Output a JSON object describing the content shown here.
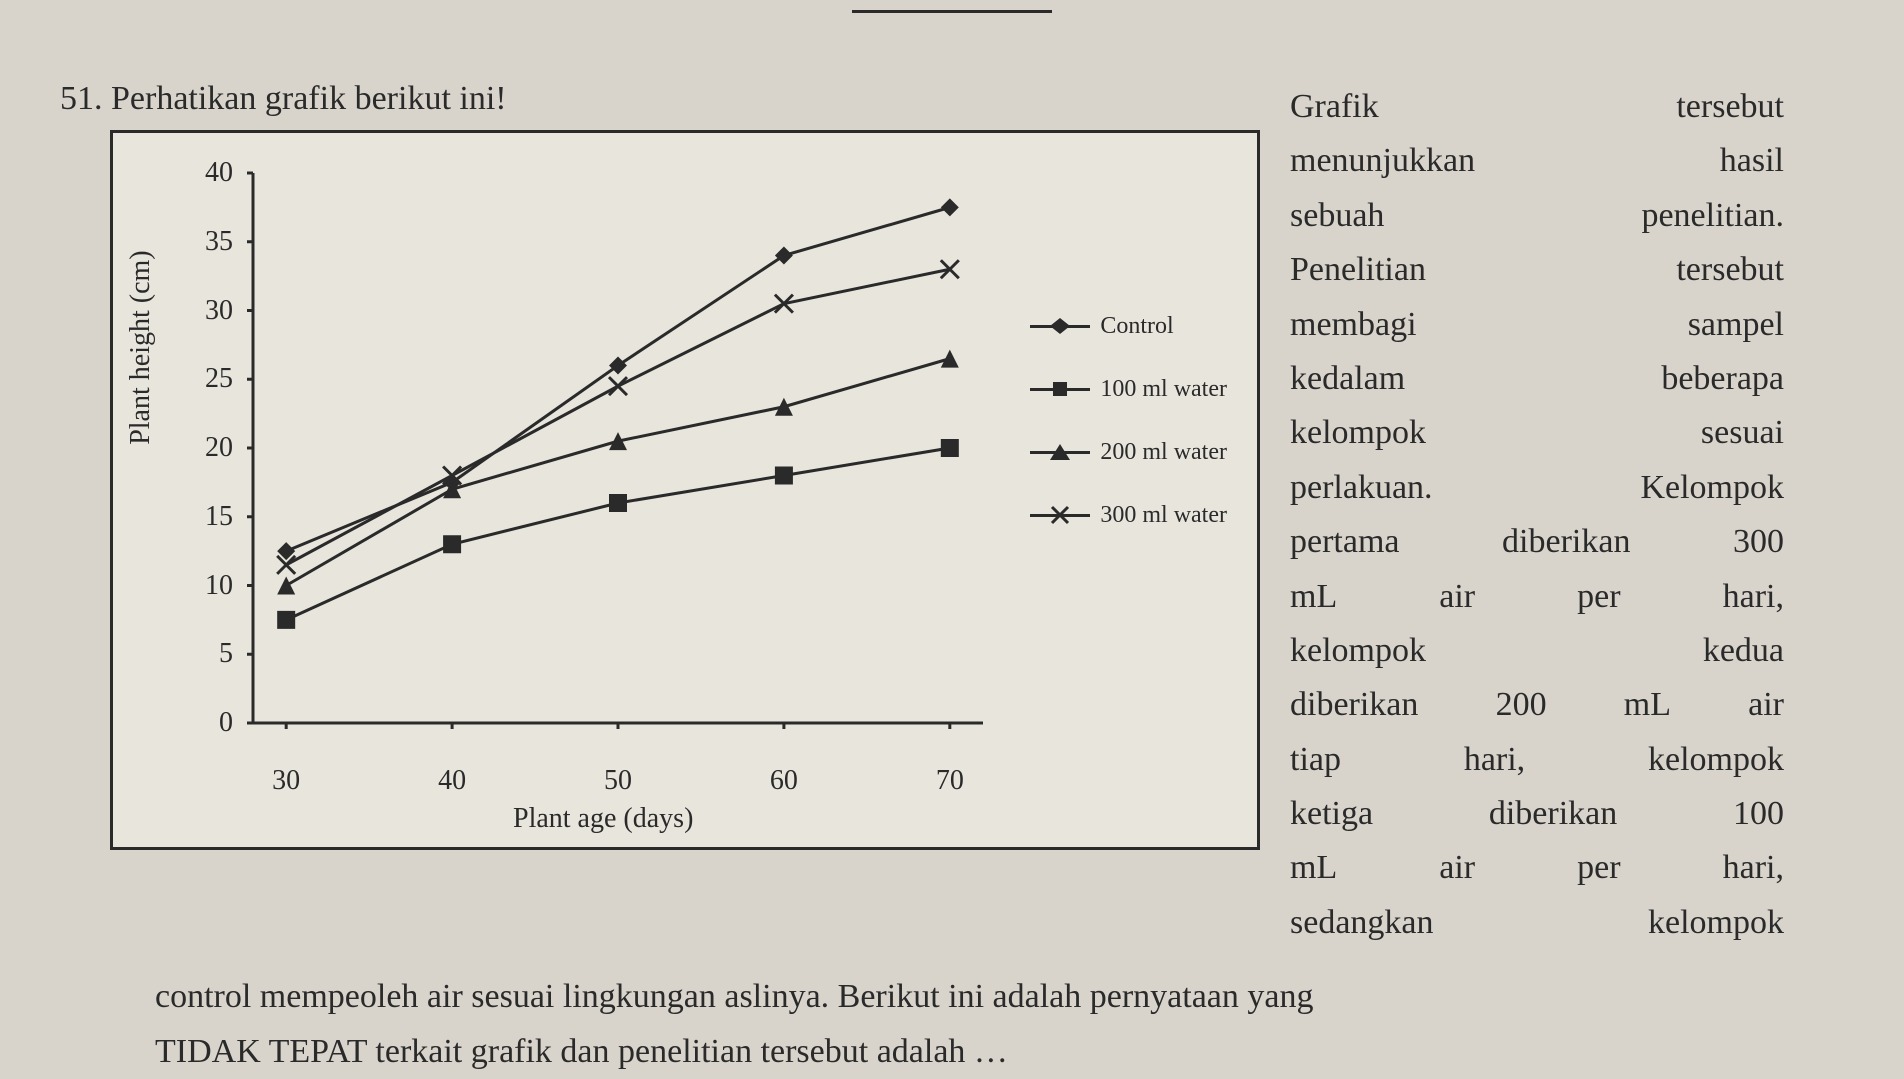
{
  "question_number": "51.",
  "question_text": "Perhatikan grafik berikut ini!",
  "chart": {
    "type": "line",
    "y_label": "Plant height (cm)",
    "x_label": "Plant age (days)",
    "x_ticks": [
      30,
      40,
      50,
      60,
      70
    ],
    "y_ticks": [
      0,
      5,
      10,
      15,
      20,
      25,
      30,
      35,
      40
    ],
    "xlim": [
      28,
      72
    ],
    "ylim": [
      0,
      40
    ],
    "background_color": "#e8e5dd",
    "axis_color": "#2a2a2a",
    "line_color": "#2a2a2a",
    "line_width": 3,
    "marker_size": 9,
    "series": [
      {
        "name": "Control",
        "marker": "diamond",
        "x": [
          30,
          40,
          50,
          60,
          70
        ],
        "y": [
          12.5,
          17.5,
          26,
          34,
          37.5
        ]
      },
      {
        "name": "100 ml water",
        "marker": "square",
        "x": [
          30,
          40,
          50,
          60,
          70
        ],
        "y": [
          7.5,
          13,
          16,
          18,
          20
        ]
      },
      {
        "name": "200 ml water",
        "marker": "triangle",
        "x": [
          30,
          40,
          50,
          60,
          70
        ],
        "y": [
          10,
          17,
          20.5,
          23,
          26.5
        ]
      },
      {
        "name": "300 ml water",
        "marker": "x",
        "x": [
          30,
          40,
          50,
          60,
          70
        ],
        "y": [
          11.5,
          18,
          24.5,
          30.5,
          33
        ]
      }
    ],
    "legend_labels": {
      "control": "Control",
      "s1": "100 ml water",
      "s2": "200 ml water",
      "s3": "300 ml water"
    }
  },
  "right_text_lines": [
    "Grafik tersebut",
    "menunjukkan hasil",
    "sebuah penelitian.",
    "Penelitian tersebut",
    "membagi sampel",
    "kedalam beberapa",
    "kelompok sesuai",
    "perlakuan. Kelompok",
    "pertama diberikan 300",
    "mL air per hari,",
    "kelompok kedua",
    "diberikan 200 mL air",
    "tiap hari, kelompok",
    "ketiga diberikan 100",
    "mL air per hari,",
    "sedangkan kelompok"
  ],
  "bottom_text_1": "control mempeoleh air sesuai lingkungan aslinya. Berikut ini adalah pernyataan yang",
  "bottom_text_2": "TIDAK TEPAT terkait grafik dan penelitian tersebut adalah …"
}
